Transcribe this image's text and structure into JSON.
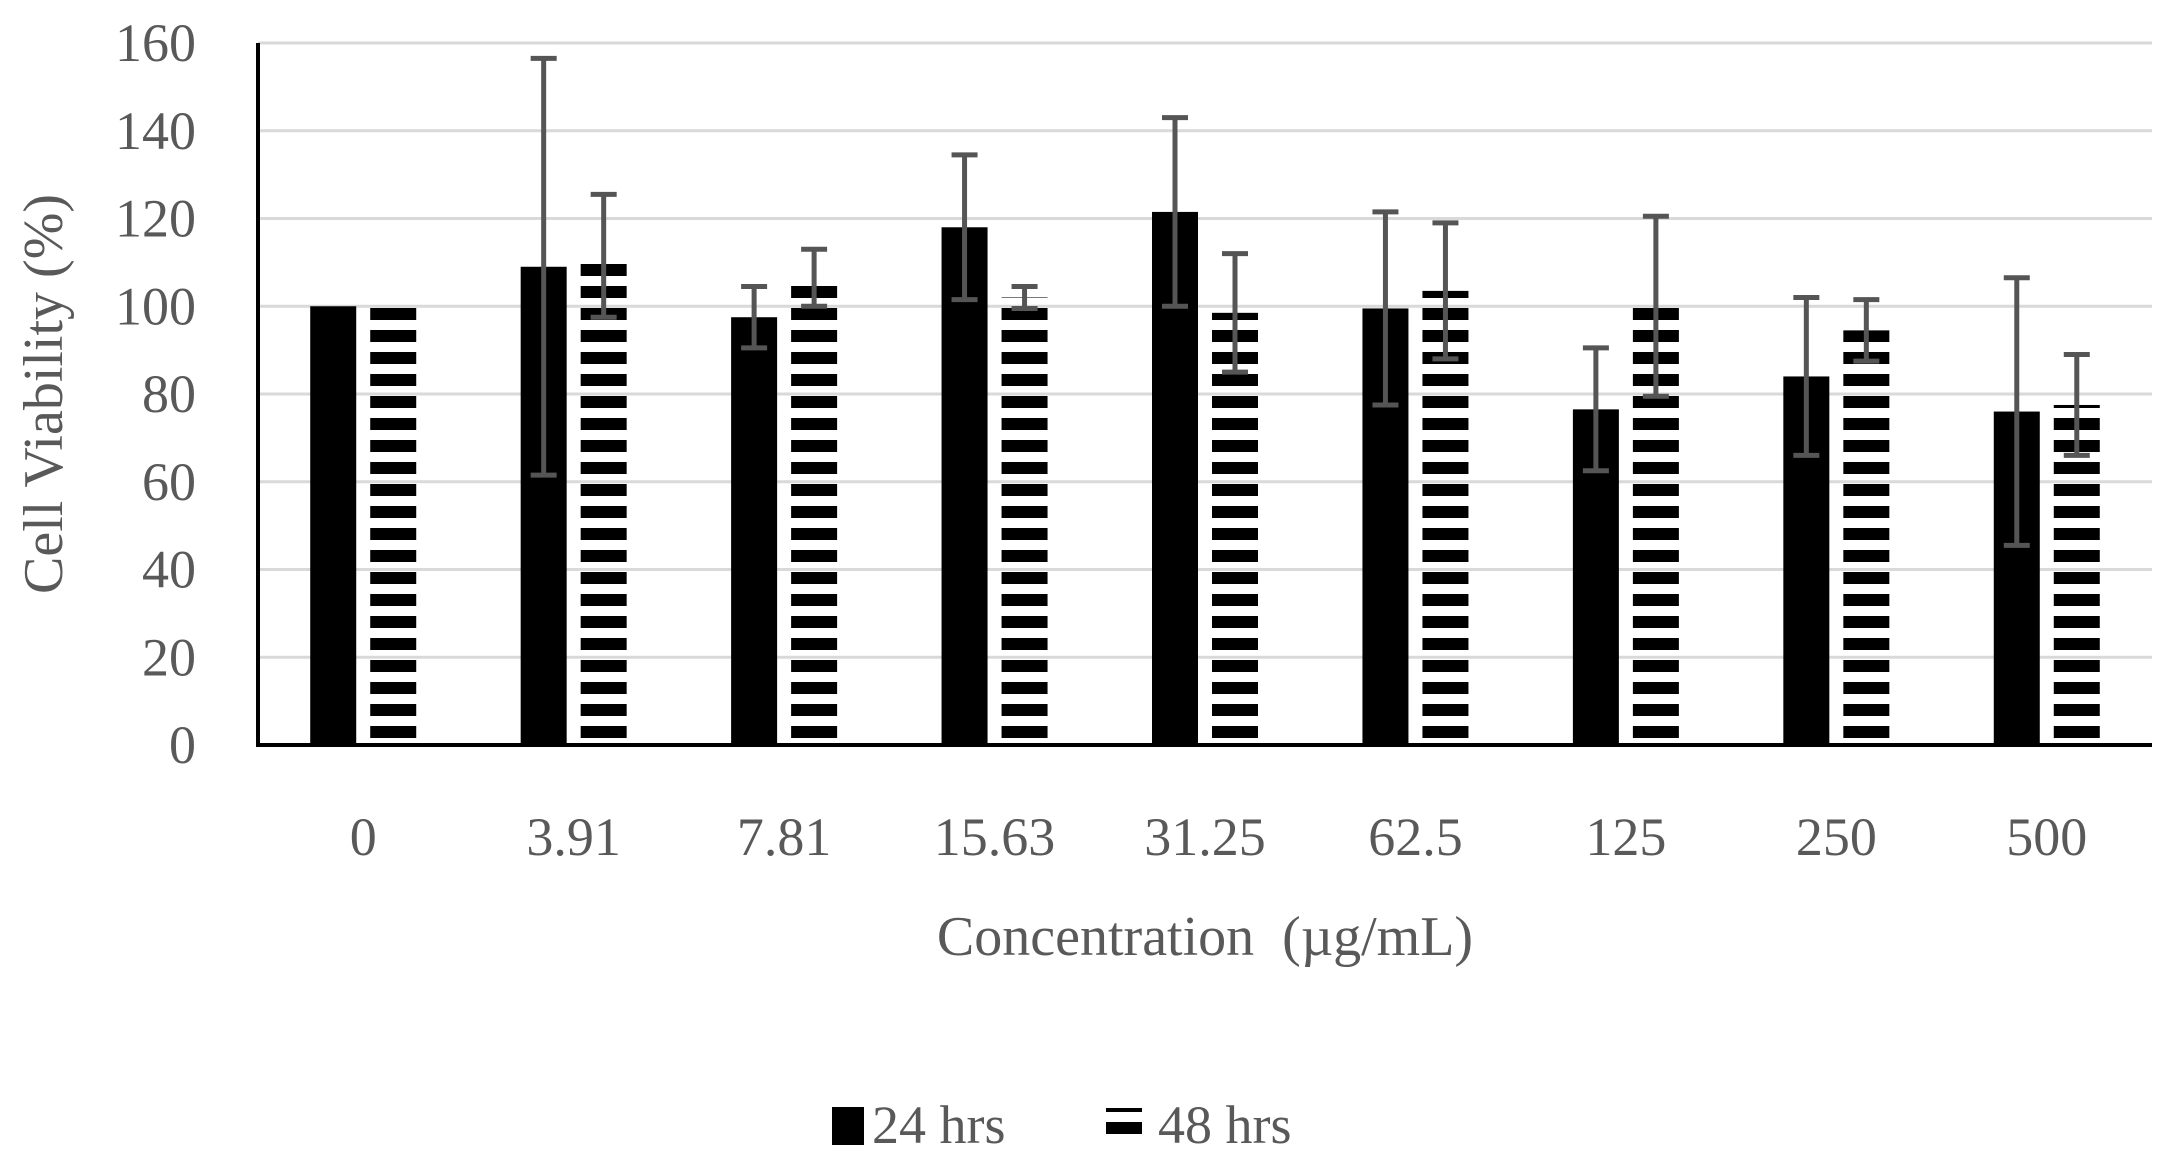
{
  "chart_data": {
    "type": "bar",
    "title": "",
    "xlabel": "Concentration  (µg/mL)",
    "ylabel": "Cell Viability (%)",
    "ylim": [
      0,
      160
    ],
    "yticks": [
      0,
      20,
      40,
      60,
      80,
      100,
      120,
      140,
      160
    ],
    "grid": true,
    "legend_position": "bottom",
    "categories": [
      "0",
      "3.91",
      "7.81",
      "15.63",
      "31.25",
      "62.5",
      "125",
      "250",
      "500"
    ],
    "series": [
      {
        "name": "24 hrs",
        "pattern": "solid",
        "color": "#000000",
        "values": [
          100,
          109,
          97.5,
          118,
          121.5,
          99.5,
          76.5,
          84,
          76
        ],
        "errors": [
          0,
          47.5,
          7,
          16.5,
          21.5,
          22,
          14,
          18,
          30.5
        ]
      },
      {
        "name": "48 hrs",
        "pattern": "horizontal-stripes",
        "color": "#000000",
        "values": [
          100,
          111.5,
          106.5,
          102,
          98.5,
          103.5,
          100,
          94.5,
          77.5
        ],
        "errors": [
          0,
          14,
          6.5,
          2.5,
          13.5,
          15.5,
          20.5,
          7,
          11.5
        ]
      }
    ]
  }
}
